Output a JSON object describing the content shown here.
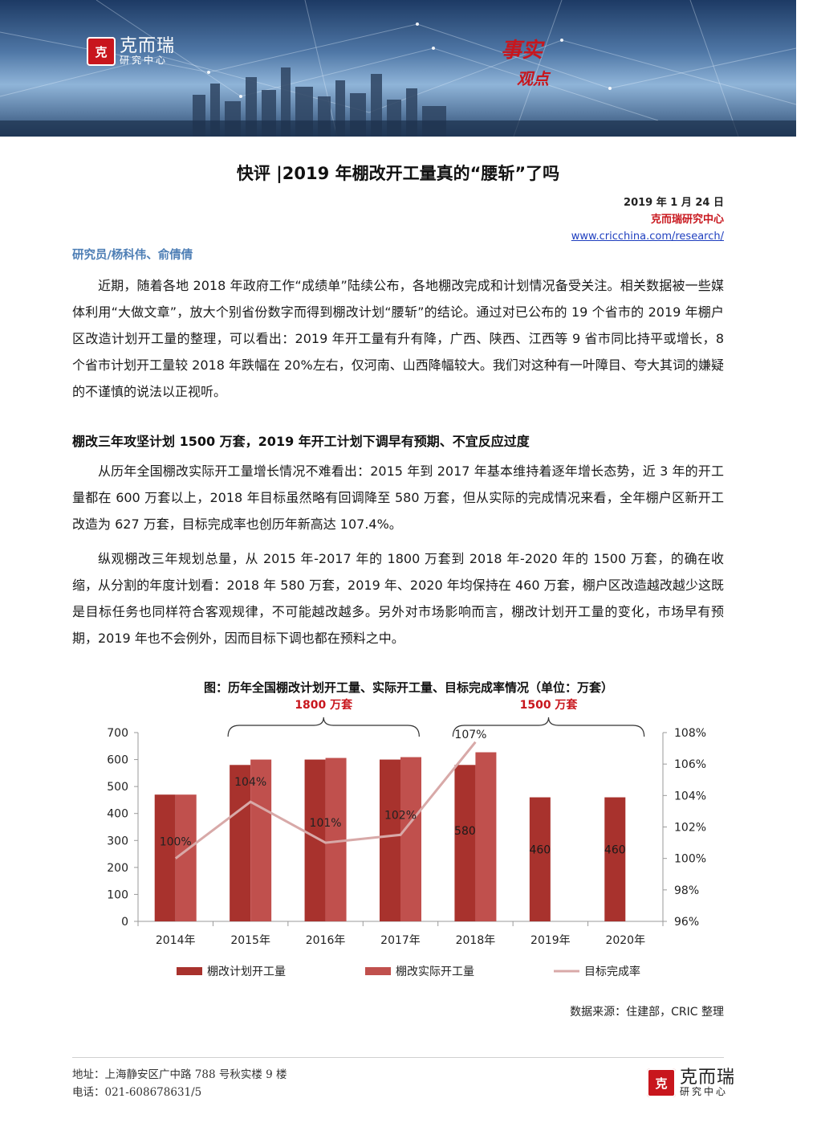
{
  "banner": {
    "logo_seal": "克",
    "logo_name": "克而瑞",
    "logo_sub": "研究中心",
    "slogan_line1": "事实",
    "slogan_line2": "观点"
  },
  "title": "快评 |2019 年棚改开工量真的“腰斩”了吗",
  "meta": {
    "date": "2019 年 1 月 24 日",
    "org": "克而瑞研究中心",
    "url": "www.cricchina.com/research/"
  },
  "authors": "研究员/杨科伟、俞倩倩",
  "paragraphs": {
    "intro": "近期，随着各地 2018 年政府工作“成绩单”陆续公布，各地棚改完成和计划情况备受关注。相关数据被一些媒体利用“大做文章”，放大个别省份数字而得到棚改计划“腰斩”的结论。通过对已公布的 19 个省市的 2019 年棚户区改造计划开工量的整理，可以看出：2019 年开工量有升有降，广西、陕西、江西等 9 省市同比持平或增长，8 个省市计划开工量较 2018 年跌幅在 20%左右，仅河南、山西降幅较大。我们对这种有一叶障目、夸大其词的嫌疑的不谨慎的说法以正视听。",
    "heading": "棚改三年攻坚计划 1500 万套，2019 年开工计划下调早有预期、不宜反应过度",
    "p2": "从历年全国棚改实际开工量增长情况不难看出：2015 年到 2017 年基本维持着逐年增长态势，近 3 年的开工量都在 600 万套以上，2018 年目标虽然略有回调降至 580 万套，但从实际的完成情况来看，全年棚户区新开工改造为 627 万套，目标完成率也创历年新高达 107.4%。",
    "p3": "纵观棚改三年规划总量，从 2015 年-2017 年的 1800 万套到 2018 年-2020 年的 1500 万套，的确在收缩，从分割的年度计划看：2018 年 580 万套，2019 年、2020 年均保持在 460 万套，棚户区改造越改越少这既是目标任务也同样符合客观规律，不可能越改越多。另外对市场影响而言，棚改计划开工量的变化，市场早有预期，2019 年也不会例外，因而目标下调也都在预料之中。"
  },
  "chart_data": {
    "type": "bar",
    "title": "图：历年全国棚改计划开工量、实际开工量、目标完成率情况（单位：万套）",
    "categories": [
      "2014年",
      "2015年",
      "2016年",
      "2017年",
      "2018年",
      "2019年",
      "2020年"
    ],
    "series": [
      {
        "name": "棚改计划开工量",
        "type": "bar",
        "axis": "left",
        "color": "#a8322d",
        "values": [
          470,
          580,
          600,
          600,
          580,
          460,
          460
        ]
      },
      {
        "name": "棚改实际开工量",
        "type": "bar",
        "axis": "left",
        "color": "#c0504d",
        "values": [
          470,
          600,
          606,
          609,
          627,
          null,
          null
        ]
      },
      {
        "name": "目标完成率",
        "type": "line",
        "axis": "right",
        "color": "#d8a9a8",
        "values": [
          100.0,
          103.6,
          101.0,
          101.5,
          107.4,
          null,
          null
        ]
      }
    ],
    "bar_labels": [
      {
        "category": "2018年",
        "text": "580"
      },
      {
        "category": "2019年",
        "text": "460"
      },
      {
        "category": "2020年",
        "text": "460"
      }
    ],
    "line_labels": [
      {
        "category": "2014年",
        "text": "100%"
      },
      {
        "category": "2015年",
        "text": "104%"
      },
      {
        "category": "2016年",
        "text": "101%"
      },
      {
        "category": "2017年",
        "text": "102%"
      },
      {
        "category": "2018年",
        "text": "107%"
      }
    ],
    "brackets": [
      {
        "label": "1800 万套",
        "from": "2015年",
        "to": "2017年"
      },
      {
        "label": "1500 万套",
        "from": "2018年",
        "to": "2020年"
      }
    ],
    "ylim": [
      0,
      700
    ],
    "yticks": [
      0,
      100,
      200,
      300,
      400,
      500,
      600,
      700
    ],
    "y2lim": [
      96,
      108
    ],
    "y2ticks": [
      "96%",
      "98%",
      "100%",
      "102%",
      "104%",
      "106%",
      "108%"
    ],
    "grid": false,
    "legend": "bottom"
  },
  "source": "数据来源：住建部，CRIC 整理",
  "footer": {
    "address": "地址：上海静安区广中路 788 号秋实楼 9 楼",
    "phone": "电话：021-60867863",
    "page": "1/5",
    "logo_seal": "克",
    "logo_name": "克而瑞",
    "logo_sub": "研究中心"
  }
}
